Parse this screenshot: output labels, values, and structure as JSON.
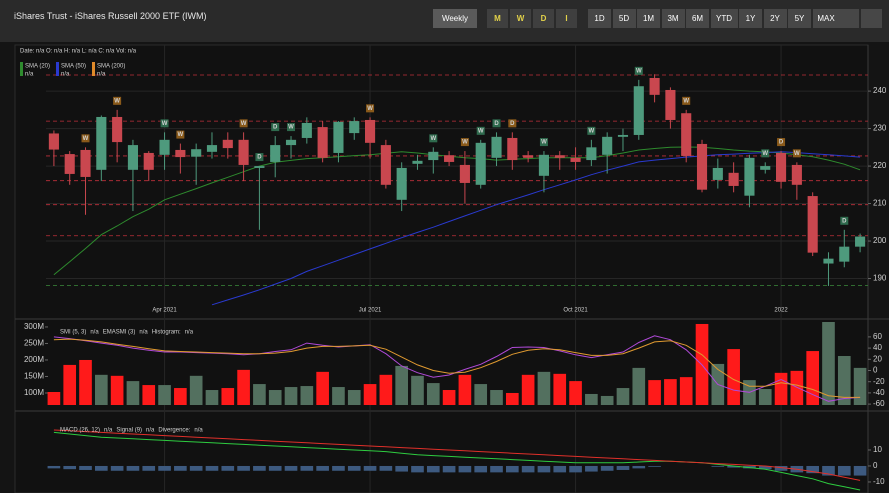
{
  "header": {
    "title": "iShares Trust - iShares Russell 2000 ETF (IWM)",
    "interval": "Weekly",
    "view_icons": [
      "M",
      "W",
      "D",
      "I"
    ],
    "ranges": [
      "1D",
      "5D",
      "1M",
      "3M",
      "6M",
      "YTD",
      "1Y",
      "2Y",
      "5Y",
      "MAX"
    ]
  },
  "info": "Date: n/a O: n/a H: n/a L: n/a C: n/a Vol: n/a",
  "chart_data": [
    {
      "type": "candlestick",
      "categories": [
        null,
        null,
        null,
        null,
        null,
        null,
        null,
        "Apr 2021",
        null,
        null,
        null,
        null,
        null,
        null,
        null,
        null,
        null,
        null,
        null,
        null,
        "Jul 2021",
        null,
        null,
        null,
        null,
        null,
        null,
        null,
        null,
        null,
        null,
        null,
        null,
        "Oct 2021",
        null,
        null,
        null,
        null,
        null,
        null,
        null,
        null,
        null,
        null,
        null,
        null,
        "2022",
        null,
        null,
        null,
        null,
        null
      ],
      "open": [
        228.7,
        223.2,
        224.3,
        219,
        233.1,
        219,
        223.5,
        223,
        224.3,
        222.5,
        223.8,
        227,
        227,
        219.5,
        221.1,
        225.6,
        227.5,
        230.4,
        223.5,
        228.8,
        232.3,
        225.6,
        211,
        220.6,
        221.6,
        222.9,
        220.3,
        215,
        222.2,
        227.5,
        222.9,
        217.4,
        222.9,
        222.2,
        221.6,
        223,
        227.8,
        228.3,
        243.5,
        240.3,
        234.1,
        225.9,
        216.3,
        218.2,
        212.1,
        219,
        223.5,
        220.3,
        212,
        194,
        194.5,
        198.5
      ],
      "high": [
        229.5,
        224,
        225,
        233.5,
        235,
        227,
        224,
        229,
        226,
        226,
        229,
        229,
        229,
        220,
        228,
        228,
        233,
        232,
        232,
        233,
        233,
        227,
        221,
        223,
        225,
        224,
        224,
        227,
        229,
        229,
        224,
        224,
        224,
        225,
        227,
        229,
        230,
        243,
        244.5,
        241,
        235,
        227,
        222,
        221,
        223,
        221,
        224,
        221,
        213,
        197,
        203,
        202
      ],
      "low": [
        220,
        215,
        207,
        216,
        221,
        208,
        216,
        219,
        218,
        215,
        222,
        222,
        216,
        203,
        217,
        222,
        226,
        221,
        221,
        227,
        222,
        214,
        208,
        219,
        218,
        220,
        210,
        214,
        220,
        219,
        221,
        213,
        219,
        219,
        220,
        218,
        224,
        227,
        237,
        230,
        221,
        213,
        214,
        213,
        209,
        218,
        214,
        211,
        196,
        188,
        193,
        197
      ],
      "close": [
        224.4,
        217.9,
        217.1,
        233.1,
        226.4,
        225.6,
        219,
        227,
        222.4,
        224.5,
        225.6,
        224.8,
        220.3,
        220,
        225.6,
        227,
        231.5,
        222.2,
        231.8,
        232,
        226.2,
        215,
        219.5,
        221.4,
        223.8,
        221.1,
        215.5,
        226.2,
        227.8,
        221.6,
        222.2,
        223,
        222.2,
        221.1,
        225,
        227.8,
        228.3,
        241.3,
        239,
        232.3,
        222.7,
        213.7,
        219.5,
        214.7,
        222.2,
        220,
        215.8,
        215,
        196.9,
        195.3,
        198.5,
        201.2
      ],
      "event_labels": [
        null,
        null,
        "W",
        null,
        "W",
        null,
        null,
        "W",
        "W",
        null,
        null,
        null,
        "W",
        "D",
        "D",
        "W",
        null,
        null,
        null,
        null,
        "W",
        null,
        null,
        null,
        "W",
        null,
        "W",
        "W",
        "D",
        "D",
        null,
        "W",
        null,
        null,
        "W",
        null,
        null,
        "W",
        null,
        null,
        "W",
        null,
        null,
        null,
        null,
        "W",
        "D",
        "W",
        null,
        null,
        "D",
        null
      ],
      "up_color": "#4e9a7d",
      "down_color": "#c9474f",
      "series": [
        {
          "name": "SMA (20)",
          "readout": "n/a",
          "color": "#2e8b2e",
          "values": [
            191,
            194.5,
            198,
            201.7,
            204,
            206.5,
            208.5,
            211,
            212.5,
            214,
            215.5,
            217,
            218.5,
            220,
            221,
            221.5,
            222,
            222.2,
            222.5,
            222.8,
            223,
            223.4,
            223.8,
            223.5,
            223,
            222.6,
            222.2,
            222,
            221.6,
            221.8,
            222,
            222.2,
            222.2,
            222.2,
            222.2,
            222.8,
            223.5,
            224.3,
            224.7,
            225,
            225.1,
            225,
            224.7,
            224.3,
            224,
            223.8,
            223.5,
            223,
            222.5,
            221.6,
            220.5,
            219
          ]
        },
        {
          "name": "SMA (50)",
          "readout": "n/a",
          "color": "#2a3ad0",
          "values": [
            null,
            null,
            null,
            null,
            null,
            null,
            null,
            null,
            null,
            null,
            183,
            184.3,
            185.6,
            187,
            188.5,
            190,
            191.9,
            193.4,
            194.9,
            196.4,
            197.9,
            199.4,
            200.9,
            202.3,
            203.7,
            205.2,
            206.7,
            208.2,
            209.7,
            211,
            212.3,
            213.7,
            215,
            216.3,
            217.7,
            218.9,
            220,
            221.1,
            221.6,
            222,
            222.4,
            222.7,
            223,
            223.2,
            223.4,
            223.6,
            223.8,
            223.6,
            223.3,
            223,
            222.7,
            222.4
          ]
        },
        {
          "name": "SMA (200)",
          "readout": "n/a",
          "color": "#e08a2a",
          "values": [
            null,
            null,
            null,
            null,
            null,
            null,
            null,
            null,
            null,
            null,
            null,
            null,
            null,
            null,
            null,
            null,
            null,
            null,
            null,
            null,
            null,
            null,
            null,
            null,
            null,
            null,
            null,
            null,
            null,
            null,
            null,
            null,
            null,
            null,
            null,
            null,
            null,
            null,
            null,
            null,
            null,
            null,
            null,
            null,
            null,
            null,
            null,
            null,
            null,
            null,
            null,
            null
          ]
        }
      ],
      "levels": [
        244.3,
        232,
        222.7,
        216.1,
        209.7,
        201.4,
        188.1
      ],
      "level_colors": [
        "#c0303a",
        "#c0303a",
        "#c0303a",
        "#c0303a",
        "#c0303a",
        "#c0303a",
        "#3a8a3a"
      ],
      "ylim": [
        180,
        251.5
      ],
      "yticks": [
        190,
        200,
        210,
        220,
        230,
        240
      ],
      "grid": true
    },
    {
      "type": "bar",
      "values": [
        103,
        185,
        200,
        155,
        152,
        136,
        124,
        124,
        115,
        152,
        109,
        115,
        170,
        127,
        109,
        118,
        121,
        164,
        118,
        109,
        127,
        155,
        182,
        152,
        130,
        109,
        155,
        127,
        109,
        100,
        155,
        164,
        158,
        136,
        97,
        91,
        115,
        176,
        139,
        142,
        148,
        309,
        188,
        233,
        139,
        112,
        161,
        167,
        227,
        315,
        212,
        176
      ],
      "up_color": "#53705f",
      "down_color": "#ff1a1a",
      "ylim": [
        63.6,
        315
      ],
      "yticks": [
        {
          "value": 300,
          "label": "300M"
        },
        {
          "value": 250,
          "label": "250M"
        },
        {
          "value": 200,
          "label": "200M"
        },
        {
          "value": 150,
          "label": "150M"
        },
        {
          "value": 100,
          "label": "100M"
        }
      ],
      "series": [
        {
          "name": "SMI (5, 3)",
          "readout": "n/a",
          "color": "#b04ad8",
          "axis": "y2",
          "values": [
            60,
            57,
            53,
            49,
            45,
            40,
            36,
            33,
            33,
            32,
            31,
            30,
            28,
            30,
            34,
            37,
            49,
            45,
            42,
            44,
            46,
            30,
            8,
            -4,
            -12,
            -8,
            2,
            11,
            25,
            41,
            42,
            41,
            35,
            28,
            23,
            28,
            33,
            50,
            62,
            55,
            37,
            10,
            -25,
            -35,
            -39,
            -28,
            -16,
            -30,
            -43,
            -55,
            -50,
            -48
          ]
        },
        {
          "name": "EMASMI (3)",
          "readout": "n/a",
          "color": "#e09a30",
          "axis": "y2",
          "values": [
            55,
            56,
            54,
            51,
            47,
            43,
            39,
            35,
            34,
            33,
            32,
            31,
            30,
            30,
            31,
            34,
            40,
            43,
            43,
            44,
            45,
            38,
            24,
            10,
            0,
            -5,
            -3,
            5,
            16,
            29,
            36,
            39,
            37,
            32,
            27,
            27,
            30,
            40,
            51,
            53,
            45,
            28,
            2,
            -16,
            -28,
            -28,
            -22,
            -26,
            -34,
            -45,
            -48,
            -48
          ]
        }
      ],
      "histogram_label": "Histogram:",
      "histogram_readout": "n/a",
      "y2lim": [
        -61.6,
        86.6
      ],
      "y2ticks": [
        60,
        40,
        20,
        0,
        -20,
        -40,
        -60
      ]
    },
    {
      "type": "bar",
      "values": [
        -1.5,
        -2,
        -2.5,
        -3,
        -3,
        -3,
        -3,
        -3,
        -3,
        -3,
        -3,
        -3,
        -3,
        -3,
        -3,
        -3,
        -3,
        -3,
        -3,
        -3,
        -3,
        -3,
        -3.5,
        -4,
        -4,
        -4,
        -4,
        -4,
        -4,
        -4,
        -4,
        -4,
        -4,
        -4,
        -3.5,
        -3,
        -2.5,
        -1.5,
        -0.5,
        0,
        0,
        0,
        -0.5,
        -1,
        -1.5,
        -2,
        -3,
        -4,
        -4.5,
        -6,
        -6,
        -6
      ],
      "color": "#3d5a80",
      "series": [
        {
          "name": "MACD (26, 12)",
          "readout": "n/a",
          "color": "#2ecc40",
          "values": [
            21,
            20,
            19,
            18,
            17.5,
            17,
            16.5,
            16,
            15.5,
            15,
            14.5,
            14,
            13.5,
            13,
            12.5,
            12,
            11.5,
            11,
            10.5,
            10,
            9.5,
            9,
            8,
            7,
            6.5,
            6,
            5.5,
            5,
            4.5,
            4,
            3.5,
            3,
            2.5,
            2,
            2,
            2,
            2,
            2.5,
            3,
            3,
            2.5,
            2,
            1,
            0,
            -1,
            -2,
            -4,
            -6,
            -8,
            -11,
            -13,
            -15
          ]
        },
        {
          "name": "Signal (9)",
          "readout": "n/a",
          "color": "#e0302a",
          "values": [
            22.5,
            22,
            21.5,
            21,
            20.5,
            20,
            19.5,
            19,
            18.5,
            18,
            17.5,
            17,
            16.5,
            16,
            15.5,
            15,
            14.5,
            14,
            13.5,
            13,
            12.5,
            12,
            11.5,
            11,
            10.5,
            10,
            9.5,
            9,
            8.5,
            8,
            7.5,
            7,
            6.5,
            6,
            5.5,
            5,
            4.5,
            4,
            3.5,
            3,
            2.5,
            2,
            1.5,
            1,
            0.5,
            0,
            -1,
            -2,
            -3.5,
            -5,
            -7,
            -9
          ]
        }
      ],
      "histogram_label": "Divergence:",
      "histogram_readout": "n/a",
      "ylim": [
        -16.9,
        28.75
      ],
      "yticks": [
        10,
        0,
        -10
      ]
    }
  ]
}
